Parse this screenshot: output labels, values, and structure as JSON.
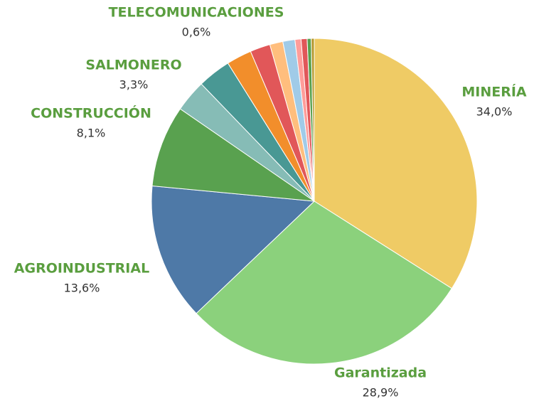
{
  "chart_data": {
    "type": "pie",
    "categories": [
      "MINERÍA",
      "Garantizada",
      "AGROINDUSTRIAL",
      "CONSTRUCCIÓN",
      null,
      "SALMONERO",
      null,
      null,
      null,
      null,
      null,
      "TELECOMUNICACIONES",
      null,
      null
    ],
    "values": [
      34.0,
      28.9,
      13.6,
      8.1,
      3.2,
      3.3,
      2.5,
      2.0,
      1.3,
      1.2,
      0.6,
      0.6,
      0.4,
      0.3
    ],
    "value_labels": [
      "34,0%",
      "28,9%",
      "13,6%",
      "8,1%",
      null,
      "3,3%",
      null,
      null,
      null,
      null,
      null,
      "0,6%",
      null,
      null
    ],
    "colors": [
      "#efcb65",
      "#8bd17c",
      "#4e79a7",
      "#59a14f",
      "#86bcb6",
      "#499894",
      "#f28e2b",
      "#e15759",
      "#ffbe7d",
      "#a0cbe8",
      "#ff9d9a",
      "#e15759",
      "#59a14f",
      "#b6992d"
    ]
  }
}
